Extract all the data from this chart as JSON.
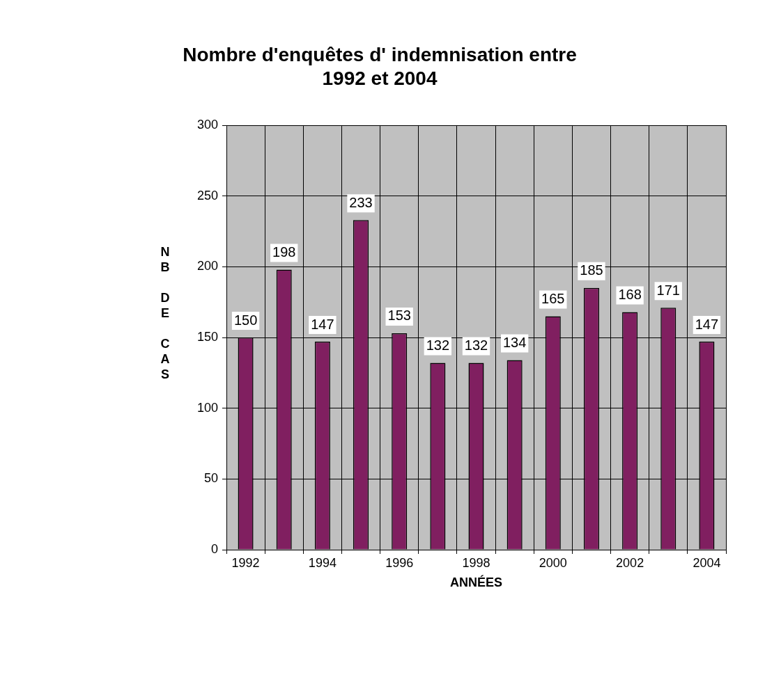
{
  "chart_data": {
    "type": "bar",
    "title": "Nombre d'enquêtes d' indemnisation entre 1992 et 2004",
    "xlabel": "ANNÉES",
    "ylabel": "NB DE CAS",
    "categories": [
      "1992",
      null,
      "1994",
      null,
      "1996",
      null,
      "1998",
      null,
      "2000",
      null,
      "2002",
      null,
      "2004"
    ],
    "values": [
      150,
      198,
      147,
      233,
      153,
      132,
      132,
      134,
      165,
      185,
      168,
      171,
      147
    ],
    "color": "#801f60",
    "ylim": [
      0,
      300
    ],
    "yticks": [
      0,
      50,
      100,
      150,
      200,
      250,
      300
    ],
    "grid": true,
    "legend": false,
    "data_labels": true
  }
}
